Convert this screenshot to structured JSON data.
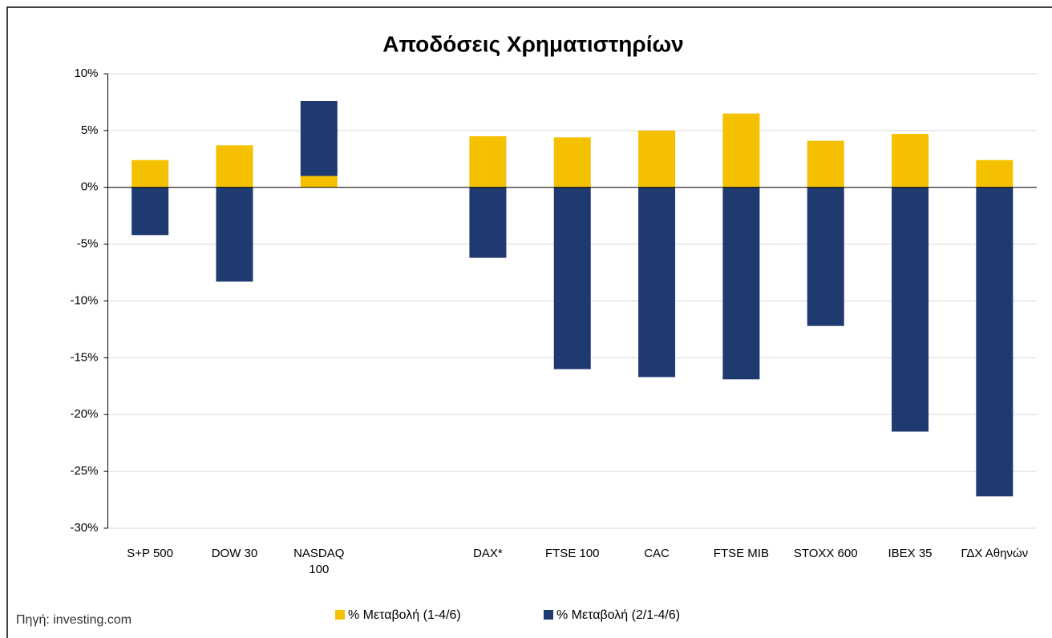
{
  "chart_data": {
    "type": "bar",
    "stacked": true,
    "title": "Αποδόσεις Χρηματιστηρίων",
    "source": "Πηγή: investing.com",
    "categories": [
      "S+P 500",
      "DOW 30",
      "NASDAQ 100",
      null,
      "DAX*",
      "FTSE 100",
      "CAC",
      "FTSE MIB",
      "STOXX 600",
      "IBEX 35",
      "ΓΔΧ Αθηνών"
    ],
    "series": [
      {
        "name": "% Μεταβολή (1-4/6)",
        "color": "#f5c000",
        "values": [
          2.4,
          3.7,
          1.0,
          null,
          4.5,
          4.4,
          5.0,
          6.5,
          4.1,
          4.7,
          2.4
        ]
      },
      {
        "name": "% Μεταβολή (2/1-4/6)",
        "color": "#1f3a70",
        "values": [
          -4.2,
          -8.3,
          6.6,
          null,
          -6.2,
          -16.0,
          -16.7,
          -16.9,
          -12.2,
          -21.5,
          -27.2
        ]
      }
    ],
    "ylim": [
      -30,
      10
    ],
    "yticks": [
      {
        "value": -30,
        "label": "-30%"
      },
      {
        "value": -25,
        "label": "-25%"
      },
      {
        "value": -20,
        "label": "-20%"
      },
      {
        "value": -15,
        "label": "-15%"
      },
      {
        "value": -10,
        "label": "-10%"
      },
      {
        "value": -5,
        "label": "-5%"
      },
      {
        "value": 0,
        "label": "0%"
      },
      {
        "value": 5,
        "label": "5%"
      },
      {
        "value": 10,
        "label": "10%"
      }
    ],
    "grid": true,
    "legend": "bottom"
  }
}
